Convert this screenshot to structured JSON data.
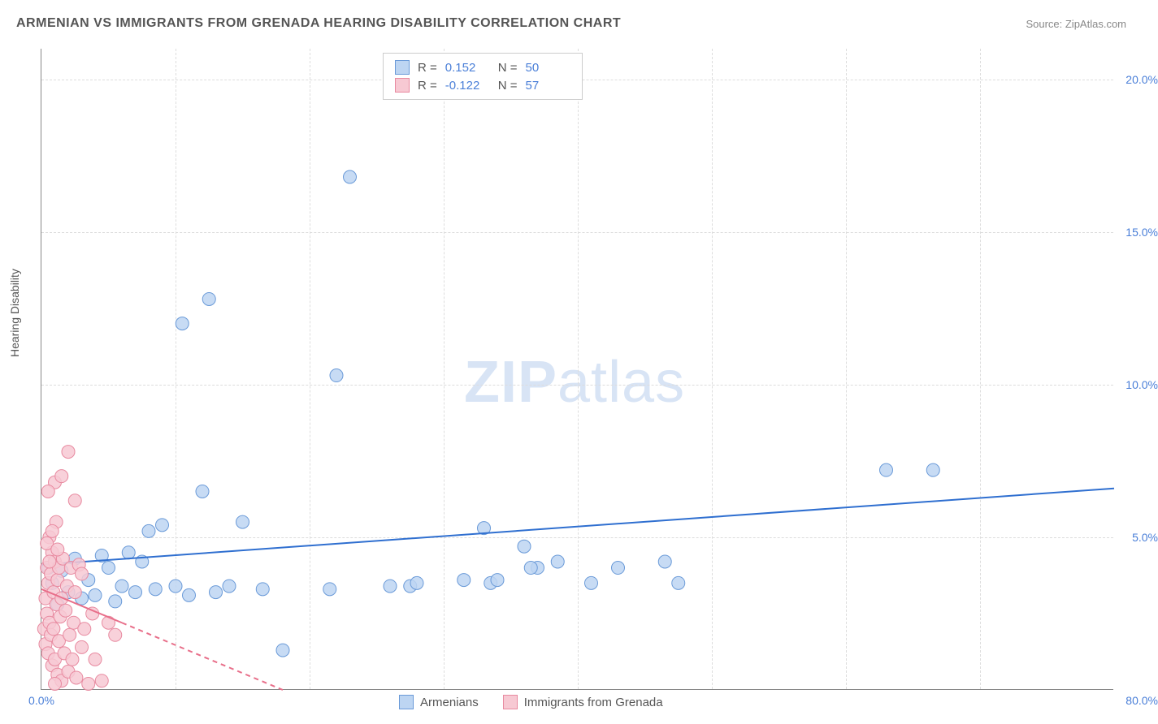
{
  "title": "ARMENIAN VS IMMIGRANTS FROM GRENADA HEARING DISABILITY CORRELATION CHART",
  "source": "Source: ZipAtlas.com",
  "ylabel": "Hearing Disability",
  "watermark_bold": "ZIP",
  "watermark_light": "atlas",
  "chart": {
    "type": "scatter",
    "xlim": [
      0,
      80
    ],
    "ylim": [
      0,
      21
    ],
    "x_ticks": [
      {
        "val": 0,
        "label": "0.0%"
      }
    ],
    "x_tick_right": "80.0%",
    "y_ticks": [
      {
        "val": 5,
        "label": "5.0%"
      },
      {
        "val": 10,
        "label": "10.0%"
      },
      {
        "val": 15,
        "label": "15.0%"
      },
      {
        "val": 20,
        "label": "20.0%"
      }
    ],
    "x_gridlines_at": [
      10,
      20,
      30,
      40,
      50,
      60,
      70
    ],
    "grid_color": "#dddddd",
    "background_color": "#ffffff",
    "series": [
      {
        "name": "Armenians",
        "marker_fill": "#bdd5f2",
        "marker_stroke": "#6a9ad8",
        "marker_radius": 8,
        "marker_opacity": 0.85,
        "trend_color": "#2f6fd0",
        "trend_width": 2,
        "trend_dash": "none",
        "trend_start": [
          0,
          4.1
        ],
        "trend_end": [
          80,
          6.6
        ],
        "R": "0.152",
        "N": "50",
        "points": [
          [
            0.5,
            4.0
          ],
          [
            0.8,
            3.5
          ],
          [
            1.0,
            4.2
          ],
          [
            1.2,
            2.8
          ],
          [
            1.5,
            3.9
          ],
          [
            2.0,
            3.2
          ],
          [
            2.5,
            4.3
          ],
          [
            3.0,
            3.0
          ],
          [
            3.5,
            3.6
          ],
          [
            4.0,
            3.1
          ],
          [
            4.5,
            4.4
          ],
          [
            5.0,
            4.0
          ],
          [
            5.5,
            2.9
          ],
          [
            6.0,
            3.4
          ],
          [
            6.5,
            4.5
          ],
          [
            7.0,
            3.2
          ],
          [
            8.0,
            5.2
          ],
          [
            8.5,
            3.3
          ],
          [
            9.0,
            5.4
          ],
          [
            10.0,
            3.4
          ],
          [
            10.5,
            12.0
          ],
          [
            11.0,
            3.1
          ],
          [
            12.0,
            6.5
          ],
          [
            12.5,
            12.8
          ],
          [
            13.0,
            3.2
          ],
          [
            14.0,
            3.4
          ],
          [
            15.0,
            5.5
          ],
          [
            16.5,
            3.3
          ],
          [
            18.0,
            1.3
          ],
          [
            22.0,
            10.3
          ],
          [
            21.5,
            3.3
          ],
          [
            23.0,
            16.8
          ],
          [
            26.0,
            3.4
          ],
          [
            27.5,
            3.4
          ],
          [
            28.0,
            3.5
          ],
          [
            31.5,
            3.6
          ],
          [
            33.0,
            5.3
          ],
          [
            33.5,
            3.5
          ],
          [
            34.0,
            3.6
          ],
          [
            36.0,
            4.7
          ],
          [
            37.0,
            4.0
          ],
          [
            38.5,
            4.2
          ],
          [
            41.0,
            3.5
          ],
          [
            43.0,
            4.0
          ],
          [
            47.5,
            3.5
          ],
          [
            63.0,
            7.2
          ],
          [
            66.5,
            7.2
          ],
          [
            46.5,
            4.2
          ],
          [
            36.5,
            4.0
          ],
          [
            7.5,
            4.2
          ]
        ]
      },
      {
        "name": "Immigrants from Grenada",
        "marker_fill": "#f7c9d3",
        "marker_stroke": "#e88aa0",
        "marker_radius": 8,
        "marker_opacity": 0.85,
        "trend_color": "#e86f8a",
        "trend_width": 2,
        "trend_dash": "6,5",
        "trend_solid_end_x": 6,
        "trend_start": [
          0,
          3.3
        ],
        "trend_end": [
          18,
          0
        ],
        "R": "-0.122",
        "N": "57",
        "points": [
          [
            0.2,
            2.0
          ],
          [
            0.3,
            3.0
          ],
          [
            0.3,
            1.5
          ],
          [
            0.4,
            4.0
          ],
          [
            0.4,
            2.5
          ],
          [
            0.5,
            3.5
          ],
          [
            0.5,
            1.2
          ],
          [
            0.6,
            5.0
          ],
          [
            0.6,
            2.2
          ],
          [
            0.7,
            3.8
          ],
          [
            0.7,
            1.8
          ],
          [
            0.8,
            4.5
          ],
          [
            0.8,
            0.8
          ],
          [
            0.9,
            3.2
          ],
          [
            0.9,
            2.0
          ],
          [
            1.0,
            4.2
          ],
          [
            1.0,
            1.0
          ],
          [
            1.1,
            5.5
          ],
          [
            1.1,
            2.8
          ],
          [
            1.2,
            3.6
          ],
          [
            1.2,
            0.5
          ],
          [
            1.3,
            4.0
          ],
          [
            1.3,
            1.6
          ],
          [
            1.4,
            2.4
          ],
          [
            1.5,
            3.0
          ],
          [
            1.5,
            0.3
          ],
          [
            1.6,
            4.3
          ],
          [
            1.7,
            1.2
          ],
          [
            1.8,
            2.6
          ],
          [
            1.9,
            3.4
          ],
          [
            2.0,
            0.6
          ],
          [
            2.1,
            1.8
          ],
          [
            2.2,
            4.0
          ],
          [
            2.3,
            1.0
          ],
          [
            2.4,
            2.2
          ],
          [
            2.5,
            3.2
          ],
          [
            2.6,
            0.4
          ],
          [
            2.8,
            4.1
          ],
          [
            3.0,
            1.4
          ],
          [
            3.2,
            2.0
          ],
          [
            3.5,
            0.2
          ],
          [
            3.8,
            2.5
          ],
          [
            4.0,
            1.0
          ],
          [
            4.5,
            0.3
          ],
          [
            5.0,
            2.2
          ],
          [
            5.5,
            1.8
          ],
          [
            1.0,
            6.8
          ],
          [
            1.5,
            7.0
          ],
          [
            2.0,
            7.8
          ],
          [
            0.5,
            6.5
          ],
          [
            2.5,
            6.2
          ],
          [
            3.0,
            3.8
          ],
          [
            0.4,
            4.8
          ],
          [
            0.6,
            4.2
          ],
          [
            0.8,
            5.2
          ],
          [
            1.2,
            4.6
          ],
          [
            1.0,
            0.2
          ]
        ]
      }
    ]
  },
  "legend_stats_labels": {
    "R": "R =",
    "N": "N ="
  },
  "legend_bottom": [
    {
      "label": "Armenians",
      "fill": "#bdd5f2",
      "stroke": "#6a9ad8"
    },
    {
      "label": "Immigrants from Grenada",
      "fill": "#f7c9d3",
      "stroke": "#e88aa0"
    }
  ]
}
